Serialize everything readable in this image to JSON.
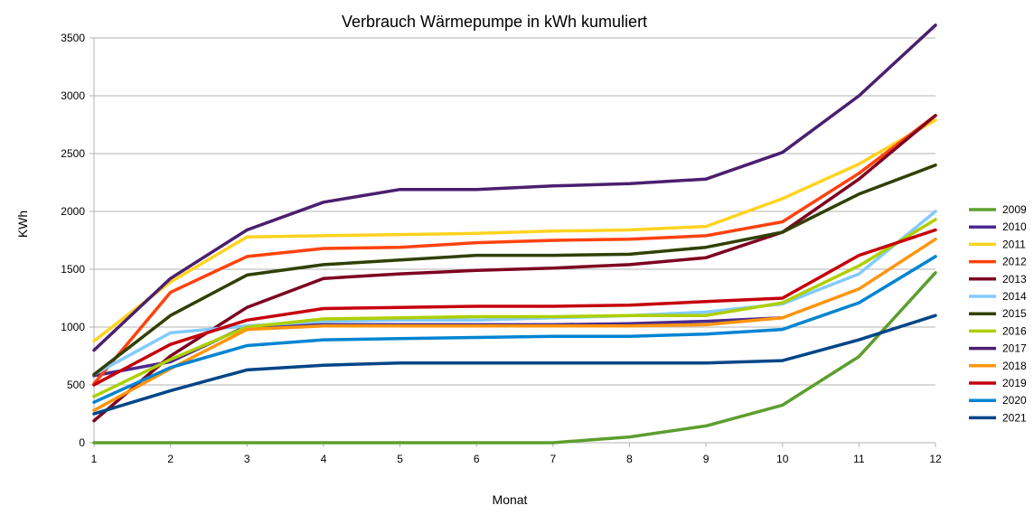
{
  "chart_data": {
    "type": "line",
    "title": "Verbrauch Wärmepumpe in kWh kumuliert",
    "xlabel": "Monat",
    "ylabel": "KWh",
    "x": [
      1,
      2,
      3,
      4,
      5,
      6,
      7,
      8,
      9,
      10,
      11,
      12
    ],
    "x_tick_labels": [
      "1",
      "2",
      "3",
      "4",
      "5",
      "6",
      "7",
      "8",
      "9",
      "10",
      "11",
      "12"
    ],
    "ylim": [
      0,
      3500
    ],
    "y_ticks": [
      0,
      500,
      1000,
      1500,
      2000,
      2500,
      3000,
      3500
    ],
    "y_tick_labels": [
      "0",
      "500",
      "1000",
      "1500",
      "2000",
      "2500",
      "3000",
      "3500"
    ],
    "grid": "horizontal",
    "legend_position": "right",
    "series": [
      {
        "name": "2009",
        "color": "#5c9e2e",
        "values": [
          0,
          0,
          0,
          0,
          0,
          0,
          0,
          50,
          145,
          325,
          745,
          1470
        ]
      },
      {
        "name": "2010",
        "color": "#4b2a8c",
        "values": [
          580,
          700,
          1010,
          1020,
          1020,
          1020,
          1020,
          1030,
          1050,
          1080,
          null,
          null
        ]
      },
      {
        "name": "2011",
        "color": "#ffd320",
        "values": [
          880,
          1390,
          1780,
          1790,
          1800,
          1810,
          1830,
          1840,
          1870,
          2110,
          2410,
          2790
        ]
      },
      {
        "name": "2012",
        "color": "#ff420e",
        "values": [
          510,
          1300,
          1610,
          1680,
          1690,
          1730,
          1750,
          1760,
          1790,
          1910,
          2330,
          2830
        ]
      },
      {
        "name": "2013",
        "color": "#7e0021",
        "values": [
          190,
          750,
          1170,
          1420,
          1460,
          1490,
          1510,
          1540,
          1600,
          1820,
          2280,
          2830
        ]
      },
      {
        "name": "2014",
        "color": "#83caff",
        "values": [
          590,
          950,
          1010,
          1050,
          1060,
          1060,
          1080,
          1100,
          1130,
          1200,
          1460,
          2000
        ]
      },
      {
        "name": "2015",
        "color": "#314004",
        "values": [
          590,
          1100,
          1450,
          1540,
          1580,
          1620,
          1620,
          1630,
          1690,
          1820,
          2150,
          2400
        ]
      },
      {
        "name": "2016",
        "color": "#aecf00",
        "values": [
          400,
          720,
          1000,
          1070,
          1080,
          1090,
          1090,
          1100,
          1100,
          1210,
          1530,
          1930
        ]
      },
      {
        "name": "2017",
        "color": "#4b1f6f",
        "values": [
          800,
          1420,
          1840,
          2080,
          2190,
          2190,
          2220,
          2240,
          2280,
          2510,
          3000,
          3610
        ]
      },
      {
        "name": "2018",
        "color": "#ff950e",
        "values": [
          280,
          640,
          980,
          1010,
          1010,
          1010,
          1010,
          1010,
          1020,
          1080,
          1330,
          1760
        ]
      },
      {
        "name": "2019",
        "color": "#c5000b",
        "values": [
          500,
          850,
          1060,
          1160,
          1170,
          1180,
          1180,
          1190,
          1220,
          1250,
          1620,
          1840
        ]
      },
      {
        "name": "2020",
        "color": "#0084d1",
        "values": [
          350,
          650,
          840,
          890,
          900,
          910,
          920,
          920,
          940,
          980,
          1210,
          1610
        ]
      },
      {
        "name": "2021",
        "color": "#004586",
        "values": [
          250,
          450,
          630,
          670,
          690,
          690,
          690,
          690,
          690,
          710,
          890,
          1100
        ]
      }
    ]
  }
}
